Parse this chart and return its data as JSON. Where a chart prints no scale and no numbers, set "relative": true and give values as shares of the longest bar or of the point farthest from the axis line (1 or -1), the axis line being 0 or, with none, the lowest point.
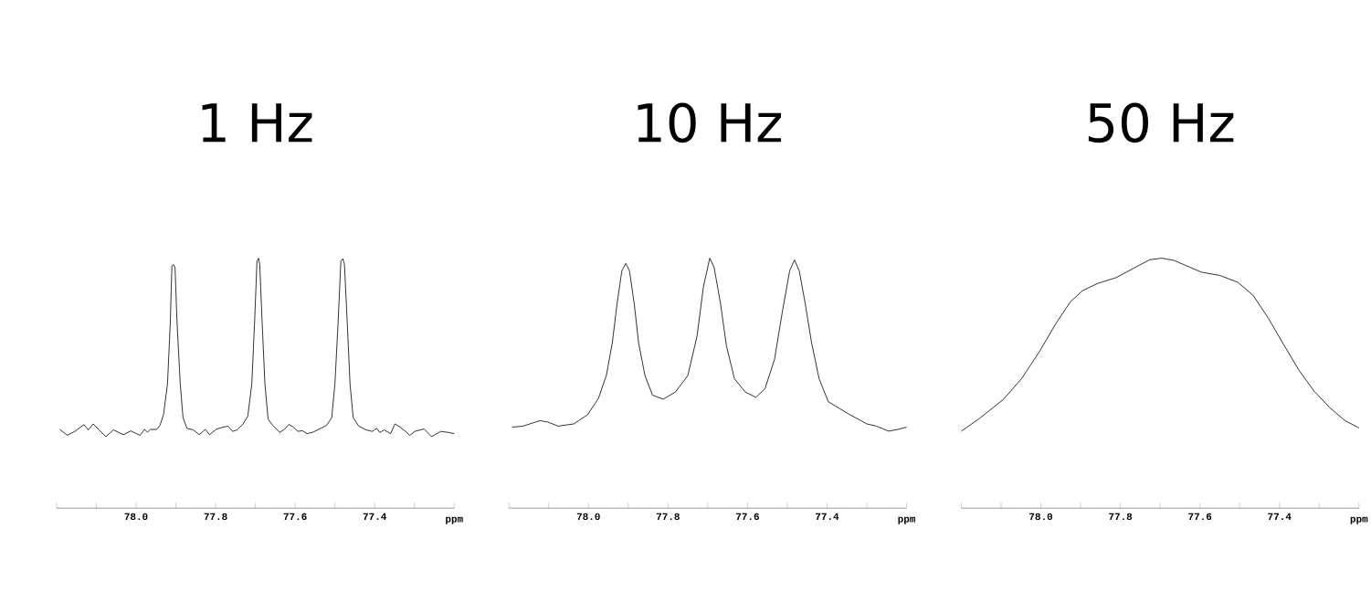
{
  "chart_data": [
    {
      "type": "line",
      "title": "1 Hz",
      "xlabel": "ppm",
      "relative": true,
      "xlim": [
        78.2,
        77.2
      ],
      "tick_labels": "x",
      "xticks": [
        {
          "value": 78.2,
          "label": null
        },
        {
          "value": 78.1,
          "label": null
        },
        {
          "value": 78.0,
          "label": "78.0"
        },
        {
          "value": 77.9,
          "label": null
        },
        {
          "value": 77.8,
          "label": "77.8"
        },
        {
          "value": 77.7,
          "label": null
        },
        {
          "value": 77.6,
          "label": "77.6"
        },
        {
          "value": 77.5,
          "label": null
        },
        {
          "value": 77.4,
          "label": "77.4"
        },
        {
          "value": 77.3,
          "label": null
        },
        {
          "value": 77.2,
          "label": null
        }
      ],
      "series": [
        {
          "color": "#000000",
          "x": [
            78.192,
            78.173,
            78.154,
            78.131,
            78.12,
            78.108,
            78.093,
            78.076,
            78.057,
            78.032,
            78.013,
            77.99,
            77.979,
            77.971,
            77.964,
            77.948,
            77.94,
            77.931,
            77.921,
            77.914,
            77.91,
            77.906,
            77.902,
            77.897,
            77.889,
            77.882,
            77.872,
            77.856,
            77.841,
            77.826,
            77.815,
            77.799,
            77.784,
            77.769,
            77.757,
            77.746,
            77.731,
            77.719,
            77.709,
            77.702,
            77.696,
            77.692,
            77.689,
            77.683,
            77.676,
            77.668,
            77.656,
            77.639,
            77.627,
            77.616,
            77.605,
            77.593,
            77.582,
            77.57,
            77.555,
            77.536,
            77.521,
            77.508,
            77.5,
            77.492,
            77.485,
            77.48,
            77.476,
            77.469,
            77.462,
            77.454,
            77.44,
            77.421,
            77.406,
            77.395,
            77.387,
            77.376,
            77.36,
            77.349,
            77.337,
            77.322,
            77.312,
            77.299,
            77.276,
            77.257,
            77.234,
            77.215,
            77.2
          ],
          "values": [
            0.315,
            0.292,
            0.307,
            0.334,
            0.313,
            0.337,
            0.313,
            0.286,
            0.313,
            0.294,
            0.309,
            0.291,
            0.315,
            0.304,
            0.315,
            0.315,
            0.331,
            0.374,
            0.497,
            0.742,
            0.969,
            0.975,
            0.963,
            0.742,
            0.497,
            0.362,
            0.319,
            0.313,
            0.294,
            0.315,
            0.294,
            0.315,
            0.323,
            0.328,
            0.307,
            0.313,
            0.337,
            0.368,
            0.497,
            0.742,
            0.988,
            1.0,
            0.975,
            0.742,
            0.497,
            0.356,
            0.331,
            0.303,
            0.315,
            0.335,
            0.325,
            0.307,
            0.31,
            0.298,
            0.304,
            0.319,
            0.331,
            0.362,
            0.497,
            0.742,
            0.988,
            0.998,
            0.975,
            0.742,
            0.497,
            0.362,
            0.328,
            0.313,
            0.307,
            0.319,
            0.303,
            0.313,
            0.298,
            0.337,
            0.325,
            0.307,
            0.291,
            0.307,
            0.317,
            0.286,
            0.307,
            0.303,
            0.298
          ]
        }
      ]
    },
    {
      "type": "line",
      "title": "10 Hz",
      "xlabel": "ppm",
      "relative": true,
      "xlim": [
        78.2,
        77.2
      ],
      "tick_labels": "x",
      "xticks": [
        {
          "value": 78.2,
          "label": null
        },
        {
          "value": 78.1,
          "label": null
        },
        {
          "value": 78.0,
          "label": "78.0"
        },
        {
          "value": 77.9,
          "label": null
        },
        {
          "value": 77.8,
          "label": "77.8"
        },
        {
          "value": 77.7,
          "label": null
        },
        {
          "value": 77.6,
          "label": "77.6"
        },
        {
          "value": 77.5,
          "label": null
        },
        {
          "value": 77.4,
          "label": "77.4"
        },
        {
          "value": 77.3,
          "label": null
        },
        {
          "value": 77.2,
          "label": null
        }
      ],
      "series": [
        {
          "color": "#000000",
          "x": [
            78.192,
            78.165,
            78.122,
            78.103,
            78.076,
            78.037,
            78.002,
            77.975,
            77.955,
            77.94,
            77.928,
            77.916,
            77.906,
            77.897,
            77.885,
            77.874,
            77.858,
            77.839,
            77.812,
            77.781,
            77.75,
            77.727,
            77.711,
            77.695,
            77.684,
            77.668,
            77.653,
            77.633,
            77.606,
            77.579,
            77.556,
            77.532,
            77.513,
            77.494,
            77.482,
            77.47,
            77.455,
            77.439,
            77.42,
            77.397,
            77.346,
            77.3,
            77.276,
            77.245,
            77.222,
            77.2
          ],
          "values": [
            0.324,
            0.328,
            0.35,
            0.345,
            0.328,
            0.337,
            0.374,
            0.439,
            0.531,
            0.662,
            0.819,
            0.95,
            0.979,
            0.95,
            0.819,
            0.662,
            0.531,
            0.452,
            0.436,
            0.465,
            0.531,
            0.688,
            0.885,
            1.0,
            0.963,
            0.819,
            0.649,
            0.518,
            0.465,
            0.443,
            0.478,
            0.596,
            0.78,
            0.95,
            0.993,
            0.95,
            0.819,
            0.662,
            0.518,
            0.426,
            0.377,
            0.337,
            0.328,
            0.308,
            0.315,
            0.324
          ]
        }
      ]
    },
    {
      "type": "line",
      "title": "50 Hz",
      "xlabel": "ppm",
      "relative": true,
      "xlim": [
        78.2,
        77.2
      ],
      "tick_labels": "x",
      "xticks": [
        {
          "value": 78.2,
          "label": null
        },
        {
          "value": 78.1,
          "label": null
        },
        {
          "value": 78.0,
          "label": "78.0"
        },
        {
          "value": 77.9,
          "label": null
        },
        {
          "value": 77.8,
          "label": "77.8"
        },
        {
          "value": 77.7,
          "label": null
        },
        {
          "value": 77.6,
          "label": "77.6"
        },
        {
          "value": 77.5,
          "label": null
        },
        {
          "value": 77.4,
          "label": "77.4"
        },
        {
          "value": 77.3,
          "label": null
        },
        {
          "value": 77.2,
          "label": null
        }
      ],
      "series": [
        {
          "color": "#000000",
          "x": [
            78.2,
            78.156,
            78.094,
            78.048,
            78.002,
            77.964,
            77.926,
            77.895,
            77.857,
            77.811,
            77.765,
            77.726,
            77.696,
            77.665,
            77.627,
            77.596,
            77.55,
            77.504,
            77.466,
            77.428,
            77.39,
            77.351,
            77.313,
            77.274,
            77.236,
            77.2
          ],
          "values": [
            0.308,
            0.357,
            0.435,
            0.519,
            0.63,
            0.734,
            0.825,
            0.87,
            0.899,
            0.922,
            0.961,
            0.994,
            1.0,
            0.991,
            0.965,
            0.944,
            0.931,
            0.903,
            0.851,
            0.76,
            0.656,
            0.552,
            0.468,
            0.403,
            0.351,
            0.321
          ]
        }
      ]
    }
  ]
}
